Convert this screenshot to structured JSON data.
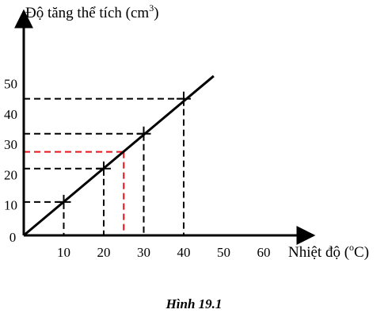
{
  "chart_data": {
    "type": "line",
    "ylabel": "Độ tăng thể tích (cm",
    "ylabel_sup": "3",
    "ylabel_close": ")",
    "xlabel_prefix": "Nhiệt độ (",
    "xlabel_sup": "o",
    "xlabel_suffix": "C)",
    "caption": "Hình 19.1",
    "origin_label": "0",
    "x_ticks": [
      10,
      20,
      30,
      40,
      50,
      60
    ],
    "y_ticks": [
      10,
      20,
      30,
      40,
      50
    ],
    "xlim": [
      0,
      70
    ],
    "ylim": [
      0,
      62
    ],
    "line": {
      "x": [
        0,
        47.5
      ],
      "y": [
        0,
        52.5
      ]
    },
    "points": [
      {
        "x": 10,
        "y": 11
      },
      {
        "x": 20,
        "y": 22
      },
      {
        "x": 30,
        "y": 33.5
      },
      {
        "x": 40,
        "y": 45
      }
    ],
    "highlight_point": {
      "x": 25,
      "y": 27.5
    },
    "colors": {
      "axis": "#000000",
      "guide": "#000000",
      "highlight": "#e8141b"
    }
  }
}
